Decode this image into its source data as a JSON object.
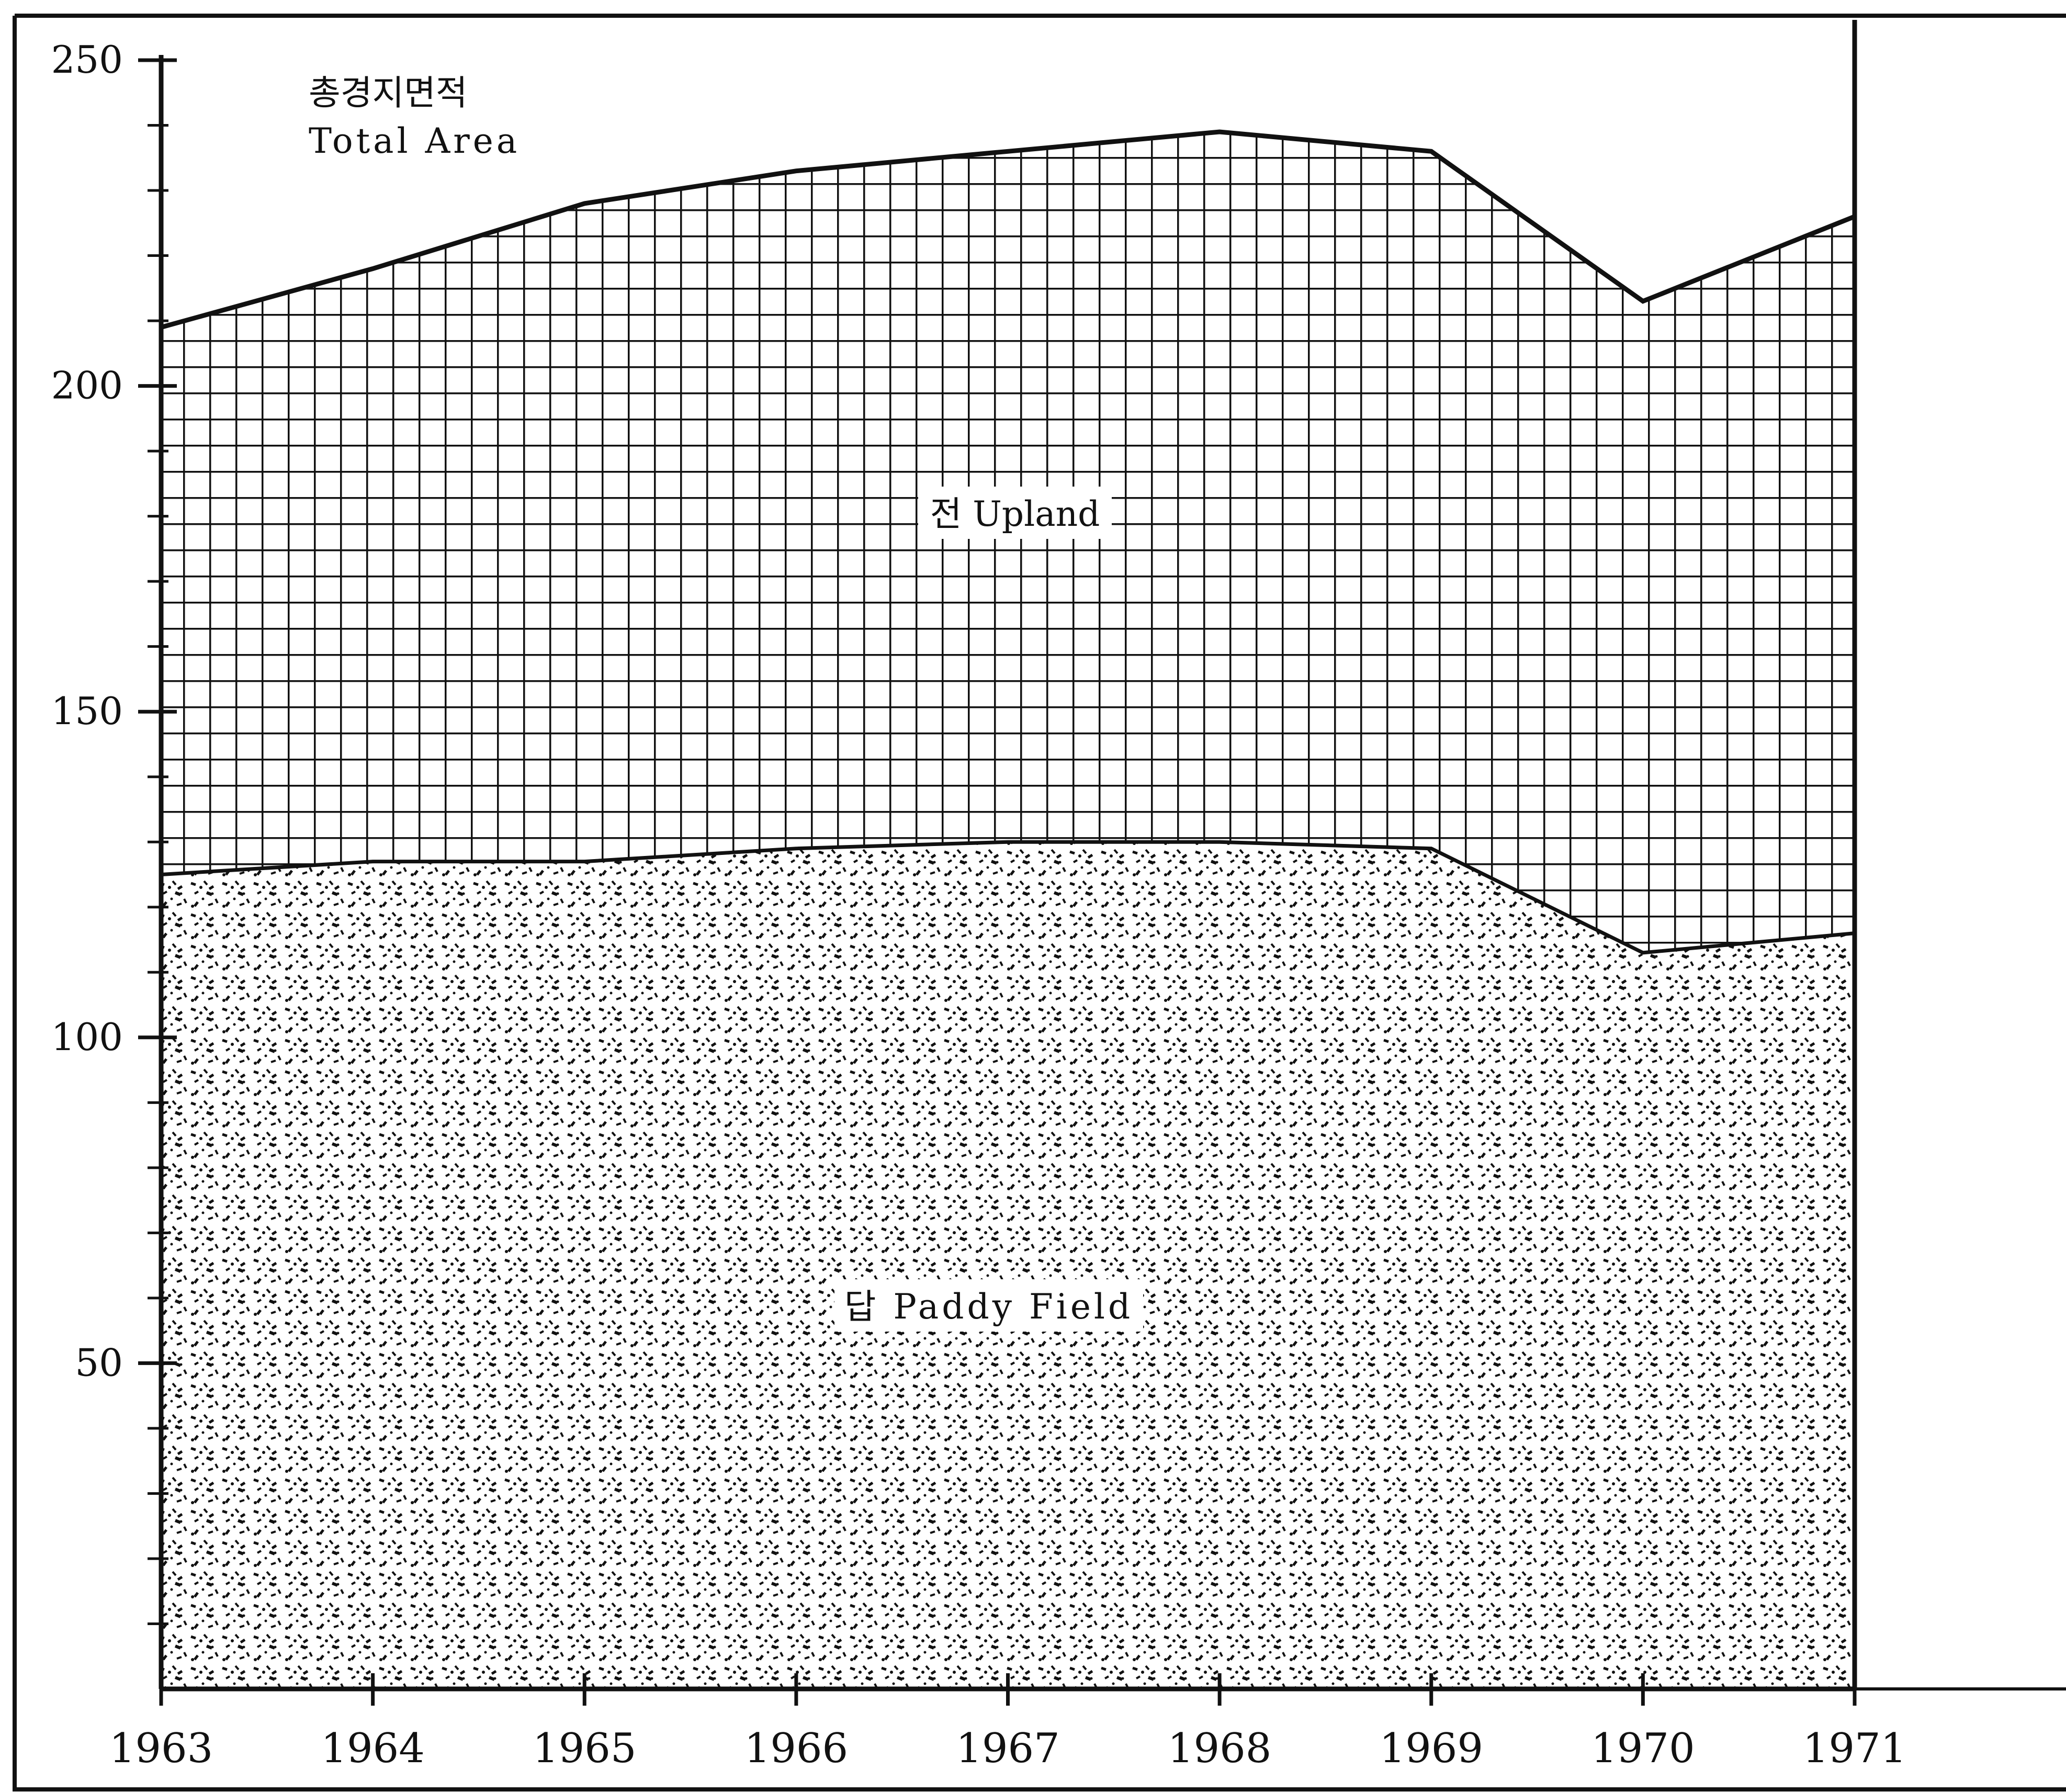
{
  "chart_data": {
    "type": "area",
    "stacked": true,
    "x": [
      1963,
      1964,
      1965,
      1966,
      1967,
      1968,
      1969,
      1970,
      1971
    ],
    "xlim": [
      1963,
      1971
    ],
    "ylim": [
      0,
      250
    ],
    "y_ticks": [
      50,
      100,
      150,
      200,
      250
    ],
    "grid": false,
    "series": [
      {
        "name": "답 Paddy Field",
        "values": [
          125,
          127,
          127,
          129,
          130,
          130,
          129,
          113,
          116
        ]
      },
      {
        "name": "전 Upland",
        "values": [
          84,
          91,
          101,
          104,
          106,
          109,
          107,
          100,
          110
        ]
      }
    ],
    "total_label": {
      "korean": "총경지면적",
      "english": "Total Area"
    },
    "upland_label": "전 Upland",
    "paddy_label": "답 Paddy Field",
    "colors": {
      "ink": "#111111",
      "background": "#ffffff"
    }
  }
}
